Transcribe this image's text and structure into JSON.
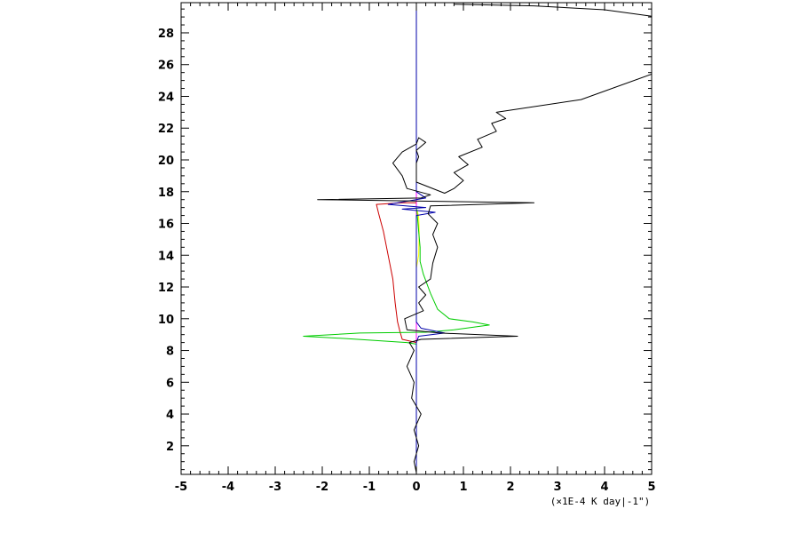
{
  "chart_data": {
    "type": "line",
    "title": "",
    "xlabel": "(×1E-4 K day|-1\")",
    "ylabel": "",
    "xlim": [
      -5,
      5
    ],
    "ylim": [
      0.2,
      29.9
    ],
    "grid": false,
    "legend": "none",
    "x_ticks": [
      -5,
      -4,
      -3,
      -2,
      -1,
      0,
      1,
      2,
      3,
      4,
      5
    ],
    "x_tick_labels": [
      "-5",
      "-4",
      "-3",
      "-2",
      "-1",
      "0",
      "1",
      "2",
      "3",
      "4",
      "5"
    ],
    "y_ticks": [
      2,
      4,
      6,
      8,
      10,
      12,
      14,
      16,
      18,
      20,
      22,
      24,
      26,
      28
    ],
    "y_tick_labels": [
      "2",
      "4",
      "6",
      "8",
      "10",
      "12",
      "14",
      "16",
      "18",
      "20",
      "22",
      "24",
      "26",
      "28"
    ],
    "series": [
      {
        "color": "#ff00ff",
        "points": [
          [
            0.0,
            0.3
          ],
          [
            0.0,
            29.9
          ]
        ]
      },
      {
        "color": "#ffff00",
        "points": [
          [
            0.0,
            13.2
          ],
          [
            0.05,
            14.0
          ],
          [
            0.06,
            15.5
          ],
          [
            0.05,
            16.4
          ],
          [
            0.02,
            16.8
          ]
        ]
      },
      {
        "color": "#cc0000",
        "points": [
          [
            0.0,
            8.5
          ],
          [
            -0.3,
            8.7
          ],
          [
            -0.35,
            9.2
          ],
          [
            -0.4,
            9.8
          ],
          [
            -0.45,
            11.0
          ],
          [
            -0.5,
            12.5
          ],
          [
            -0.6,
            14.0
          ],
          [
            -0.7,
            15.5
          ],
          [
            -0.8,
            16.6
          ],
          [
            -0.85,
            17.2
          ],
          [
            -0.3,
            17.3
          ],
          [
            0.0,
            17.3
          ]
        ]
      },
      {
        "color": "#00cc00",
        "points": [
          [
            0.0,
            17.0
          ],
          [
            0.02,
            16.5
          ],
          [
            0.05,
            15.5
          ],
          [
            0.08,
            14.5
          ],
          [
            0.08,
            13.6
          ],
          [
            0.15,
            12.8
          ],
          [
            0.3,
            11.6
          ],
          [
            0.45,
            10.6
          ],
          [
            0.7,
            10.0
          ],
          [
            1.2,
            9.8
          ],
          [
            1.55,
            9.6
          ],
          [
            0.8,
            9.3
          ],
          [
            0.2,
            9.15
          ],
          [
            -1.2,
            9.1
          ],
          [
            -2.4,
            8.9
          ],
          [
            -1.5,
            8.75
          ],
          [
            -0.2,
            8.5
          ],
          [
            0.0,
            8.4
          ],
          [
            0.0,
            0.3
          ]
        ]
      },
      {
        "color": "#0000aa",
        "points": [
          [
            0.0,
            29.9
          ],
          [
            0.0,
            21.5
          ],
          [
            0.0,
            18.0
          ],
          [
            0.2,
            17.6
          ],
          [
            -0.6,
            17.2
          ],
          [
            0.2,
            17.0
          ],
          [
            -0.3,
            16.9
          ],
          [
            0.4,
            16.7
          ],
          [
            0.0,
            16.5
          ],
          [
            0.0,
            9.8
          ],
          [
            0.1,
            9.4
          ],
          [
            0.6,
            9.1
          ],
          [
            0.05,
            8.9
          ],
          [
            0.0,
            8.5
          ],
          [
            0.0,
            0.3
          ]
        ]
      },
      {
        "color": "#000000",
        "points": [
          [
            0.0,
            0.3
          ],
          [
            -0.05,
            1.0
          ],
          [
            0.05,
            2.0
          ],
          [
            -0.05,
            3.0
          ],
          [
            0.1,
            4.0
          ],
          [
            -0.1,
            5.0
          ],
          [
            -0.05,
            6.0
          ],
          [
            -0.2,
            7.0
          ],
          [
            -0.05,
            8.0
          ],
          [
            -0.15,
            8.5
          ],
          [
            0.1,
            8.7
          ],
          [
            2.15,
            8.9
          ],
          [
            0.5,
            9.1
          ],
          [
            -0.2,
            9.3
          ],
          [
            -0.25,
            10.0
          ],
          [
            0.15,
            10.5
          ],
          [
            0.05,
            11.0
          ],
          [
            0.2,
            11.5
          ],
          [
            0.05,
            12.0
          ],
          [
            0.3,
            12.5
          ],
          [
            0.35,
            13.5
          ],
          [
            0.45,
            14.5
          ],
          [
            0.35,
            15.3
          ],
          [
            0.45,
            16.0
          ],
          [
            0.25,
            16.6
          ],
          [
            0.3,
            17.1
          ],
          [
            2.5,
            17.3
          ],
          [
            -2.1,
            17.5
          ],
          [
            0.1,
            17.6
          ],
          [
            0.3,
            17.8
          ],
          [
            -0.2,
            18.2
          ],
          [
            -0.3,
            19.0
          ],
          [
            -0.5,
            19.8
          ],
          [
            -0.3,
            20.5
          ],
          [
            0.0,
            21.0
          ],
          [
            0.05,
            21.4
          ],
          [
            0.2,
            21.1
          ],
          [
            0.0,
            20.6
          ],
          [
            0.05,
            20.2
          ],
          [
            0.0,
            19.8
          ],
          [
            0.0,
            18.6
          ],
          [
            0.6,
            17.9
          ],
          [
            0.8,
            18.2
          ],
          [
            1.0,
            18.7
          ],
          [
            0.8,
            19.2
          ],
          [
            1.1,
            19.7
          ],
          [
            0.9,
            20.2
          ],
          [
            1.4,
            20.8
          ],
          [
            1.3,
            21.3
          ],
          [
            1.7,
            21.8
          ],
          [
            1.6,
            22.3
          ],
          [
            1.9,
            22.6
          ],
          [
            1.7,
            23.0
          ],
          [
            3.5,
            23.8
          ],
          [
            5.0,
            25.4
          ]
        ]
      },
      {
        "color": "#000000",
        "points": [
          [
            0.8,
            29.8
          ],
          [
            2.5,
            29.7
          ],
          [
            4.0,
            29.45
          ],
          [
            5.0,
            29.05
          ]
        ]
      }
    ]
  }
}
